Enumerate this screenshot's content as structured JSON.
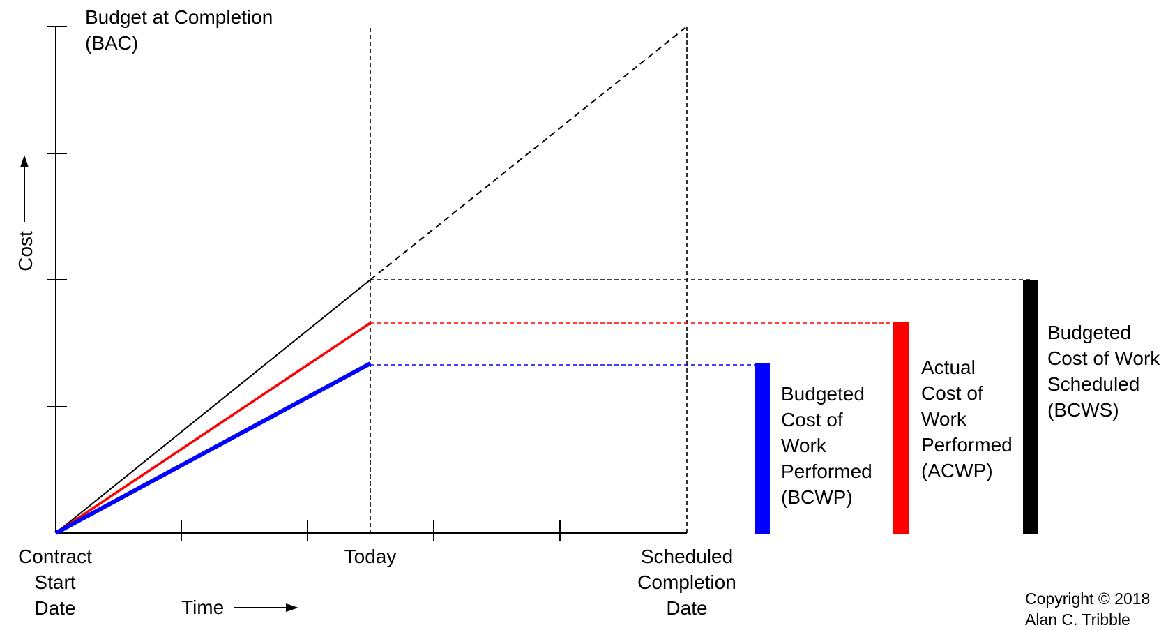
{
  "labels": {
    "bac": "Budget at Completion\n(BAC)",
    "cost_axis": "Cost",
    "time_axis": "Time",
    "contract_start": "Contract\nStart\nDate",
    "today": "Today",
    "scheduled_completion": "Scheduled\nCompletion\nDate",
    "bcwp": "Budgeted\nCost of\nWork\nPerformed\n(BCWP)",
    "acwp": "Actual\nCost of\nWork\nPerformed\n(ACWP)",
    "bcws": "Budgeted\nCost of Work\nScheduled\n(BCWS)",
    "copyright": "Copyright © 2018\nAlan C. Tribble"
  },
  "colors": {
    "axis": "#000000",
    "bcws": "#000000",
    "acwp": "#ff0000",
    "bcwp": "#0000ff"
  }
}
